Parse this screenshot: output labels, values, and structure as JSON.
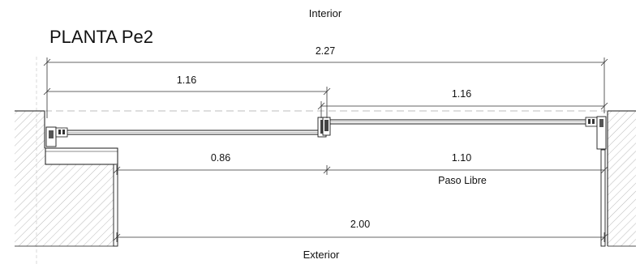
{
  "title": "PLANTA Pe2",
  "labels": {
    "interior": "Interior",
    "exterior": "Exterior",
    "paso_libre": "Paso Libre"
  },
  "dimensions": {
    "overall": "2.27",
    "left_leaf": "1.16",
    "right_leaf": "1.16",
    "left_opening": "0.86",
    "right_opening": "1.10",
    "clear_width": "2.00"
  },
  "colors": {
    "line": "#1a1a1a",
    "dim": "#333333",
    "hatch": "#9a9a9a",
    "dashed": "#bdbdbd"
  }
}
